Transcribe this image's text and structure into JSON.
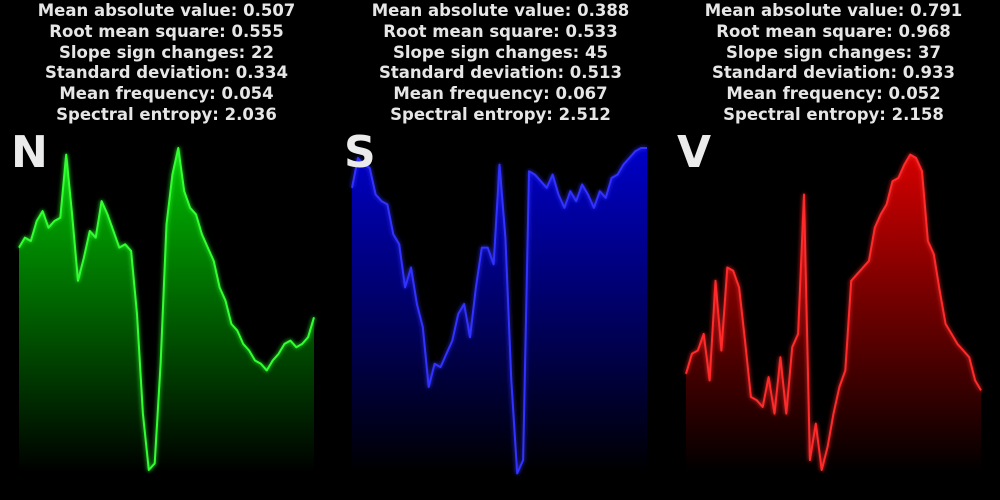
{
  "panels": [
    {
      "letter": "N",
      "color": "#33ff33",
      "fill_top": "#00c000",
      "stats": [
        {
          "label": "Mean absolute value",
          "value": "0.507"
        },
        {
          "label": "Root mean square",
          "value": "0.555"
        },
        {
          "label": "Slope sign changes",
          "value": "22"
        },
        {
          "label": "Standard deviation",
          "value": "0.334"
        },
        {
          "label": "Mean frequency",
          "value": "0.054"
        },
        {
          "label": "Spectral entropy",
          "value": "2.036"
        }
      ]
    },
    {
      "letter": "S",
      "color": "#3030ff",
      "fill_top": "#0000c8",
      "stats": [
        {
          "label": "Mean absolute value",
          "value": "0.388"
        },
        {
          "label": "Root mean square",
          "value": "0.533"
        },
        {
          "label": "Slope sign changes",
          "value": "45"
        },
        {
          "label": "Standard deviation",
          "value": "0.513"
        },
        {
          "label": "Mean frequency",
          "value": "0.067"
        },
        {
          "label": "Spectral entropy",
          "value": "2.512"
        }
      ]
    },
    {
      "letter": "V",
      "color": "#ff2a2a",
      "fill_top": "#d40000",
      "stats": [
        {
          "label": "Mean absolute value",
          "value": "0.791"
        },
        {
          "label": "Root mean square",
          "value": "0.968"
        },
        {
          "label": "Slope sign changes",
          "value": "37"
        },
        {
          "label": "Standard deviation",
          "value": "0.933"
        },
        {
          "label": "Mean frequency",
          "value": "0.052"
        },
        {
          "label": "Spectral entropy",
          "value": "2.158"
        }
      ]
    }
  ],
  "chart_data": [
    {
      "type": "area",
      "letter": "N",
      "ylim": [
        0,
        1
      ],
      "grid": false,
      "x": [
        0,
        2,
        4,
        6,
        8,
        10,
        12,
        14,
        16,
        18,
        20,
        22,
        24,
        26,
        28,
        30,
        32,
        34,
        36,
        38,
        40,
        42,
        44,
        46,
        48,
        50,
        52,
        54,
        56,
        58,
        60,
        62,
        64,
        66,
        68,
        70,
        72,
        74,
        76,
        78,
        80,
        82,
        84,
        86,
        88,
        90,
        92,
        94,
        96,
        98,
        100
      ],
      "values": [
        0.7,
        0.73,
        0.72,
        0.78,
        0.81,
        0.76,
        0.78,
        0.79,
        0.98,
        0.8,
        0.6,
        0.67,
        0.75,
        0.73,
        0.84,
        0.8,
        0.75,
        0.7,
        0.71,
        0.69,
        0.5,
        0.2,
        0.03,
        0.05,
        0.35,
        0.77,
        0.92,
        1.0,
        0.87,
        0.82,
        0.8,
        0.74,
        0.7,
        0.66,
        0.58,
        0.54,
        0.47,
        0.45,
        0.41,
        0.39,
        0.36,
        0.35,
        0.33,
        0.36,
        0.38,
        0.41,
        0.42,
        0.4,
        0.41,
        0.43,
        0.49
      ]
    },
    {
      "type": "area",
      "letter": "S",
      "ylim": [
        0,
        1
      ],
      "grid": false,
      "x": [
        0,
        2,
        4,
        6,
        8,
        10,
        12,
        14,
        16,
        18,
        20,
        22,
        24,
        26,
        28,
        30,
        32,
        34,
        36,
        38,
        40,
        42,
        44,
        46,
        48,
        50,
        52,
        54,
        56,
        58,
        60,
        62,
        64,
        66,
        68,
        70,
        72,
        74,
        76,
        78,
        80,
        82,
        84,
        86,
        88,
        90,
        92,
        94,
        96,
        98,
        100
      ],
      "values": [
        0.88,
        0.97,
        0.95,
        0.94,
        0.86,
        0.84,
        0.83,
        0.74,
        0.71,
        0.58,
        0.64,
        0.53,
        0.46,
        0.28,
        0.35,
        0.34,
        0.38,
        0.42,
        0.5,
        0.53,
        0.43,
        0.58,
        0.7,
        0.7,
        0.65,
        0.95,
        0.73,
        0.3,
        0.02,
        0.06,
        0.93,
        0.92,
        0.9,
        0.88,
        0.92,
        0.86,
        0.82,
        0.87,
        0.84,
        0.89,
        0.86,
        0.82,
        0.87,
        0.85,
        0.91,
        0.92,
        0.95,
        0.97,
        0.99,
        1.0,
        1.0
      ]
    },
    {
      "type": "area",
      "letter": "V",
      "ylim": [
        0,
        1
      ],
      "grid": false,
      "x": [
        0,
        2,
        4,
        6,
        8,
        10,
        12,
        14,
        16,
        18,
        20,
        22,
        24,
        26,
        28,
        30,
        32,
        34,
        36,
        38,
        40,
        42,
        44,
        46,
        48,
        50,
        52,
        54,
        56,
        58,
        60,
        62,
        64,
        66,
        68,
        70,
        72,
        74,
        76,
        78,
        80,
        82,
        84,
        86,
        88,
        90,
        92,
        94,
        96,
        98,
        100
      ],
      "values": [
        0.32,
        0.38,
        0.39,
        0.44,
        0.3,
        0.6,
        0.39,
        0.64,
        0.63,
        0.58,
        0.42,
        0.25,
        0.24,
        0.22,
        0.31,
        0.2,
        0.37,
        0.2,
        0.4,
        0.44,
        0.86,
        0.06,
        0.17,
        0.03,
        0.1,
        0.2,
        0.28,
        0.33,
        0.6,
        0.62,
        0.64,
        0.66,
        0.76,
        0.8,
        0.83,
        0.9,
        0.91,
        0.95,
        0.98,
        0.97,
        0.93,
        0.72,
        0.68,
        0.57,
        0.47,
        0.44,
        0.41,
        0.39,
        0.37,
        0.3,
        0.27
      ]
    }
  ]
}
